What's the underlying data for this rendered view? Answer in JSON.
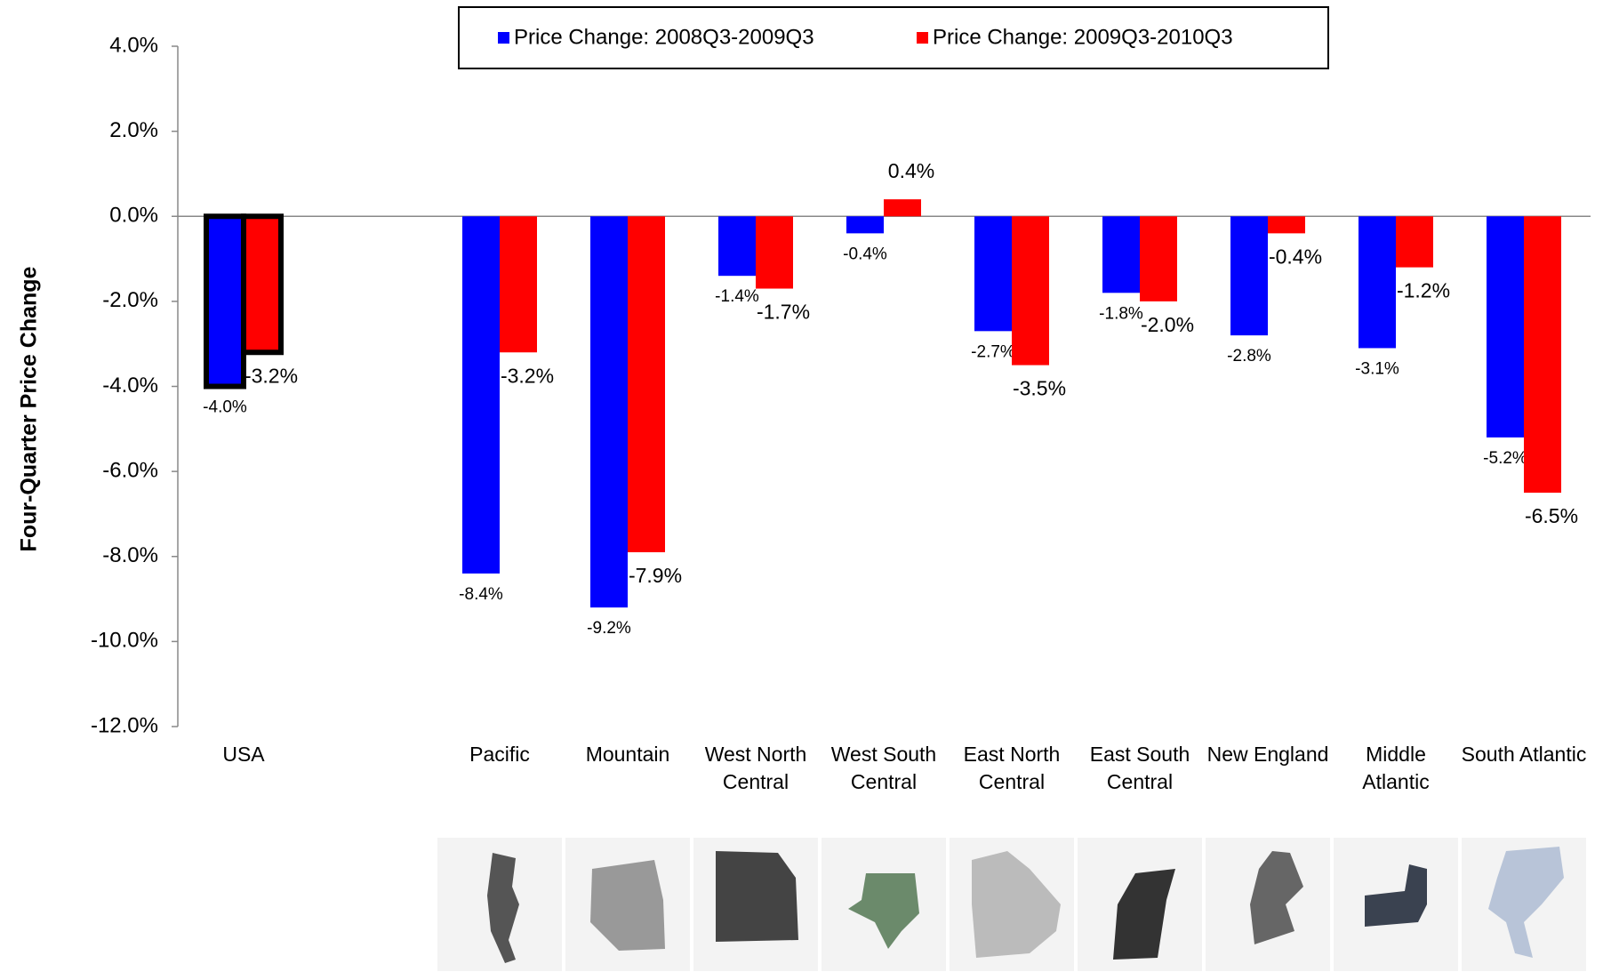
{
  "chart_data": {
    "type": "bar",
    "y_label": "Four-Quarter Price Change",
    "categories": [
      "USA",
      null,
      "Pacific",
      "Mountain",
      "West North Central",
      "West South Central",
      "East North Central",
      "East South Central",
      "New England",
      "Middle Atlantic",
      "South Atlantic"
    ],
    "highlight": "USA",
    "series": [
      {
        "name": "Price Change: 2008Q3-2009Q3",
        "color": "#0000ff",
        "values": [
          -4.0,
          null,
          -8.4,
          -9.2,
          -1.4,
          -0.4,
          -2.7,
          -1.8,
          -2.8,
          -3.1,
          -5.2
        ],
        "value_labels": [
          "-4.0%",
          null,
          "-8.4%",
          "-9.2%",
          "-1.4%",
          "-0.4%",
          "-2.7%",
          "-1.8%",
          "-2.8%",
          "-3.1%",
          "-5.2%"
        ]
      },
      {
        "name": "Price Change: 2009Q3-2010Q3",
        "color": "#ff0000",
        "values": [
          -3.2,
          null,
          -3.2,
          -7.9,
          -1.7,
          0.4,
          -3.5,
          -2.0,
          -0.4,
          -1.2,
          -6.5
        ],
        "value_labels": [
          "-3.2%",
          null,
          "-3.2%",
          "-7.9%",
          "-1.7%",
          "0.4%",
          "-3.5%",
          "-2.0%",
          "-0.4%",
          "-1.2%",
          "-6.5%"
        ]
      }
    ],
    "ylim": [
      -12,
      4
    ],
    "yticks": [
      {
        "value": -12,
        "label": "-12.0%"
      },
      {
        "value": -10,
        "label": "-10.0%"
      },
      {
        "value": -8,
        "label": "-8.0%"
      },
      {
        "value": -6,
        "label": "-6.0%"
      },
      {
        "value": -4,
        "label": "-4.0%"
      },
      {
        "value": -2,
        "label": "-2.0%"
      },
      {
        "value": 0,
        "label": "0.0%"
      },
      {
        "value": 2,
        "label": "2.0%"
      },
      {
        "value": 4,
        "label": "4.0%"
      }
    ],
    "legend": "top"
  }
}
